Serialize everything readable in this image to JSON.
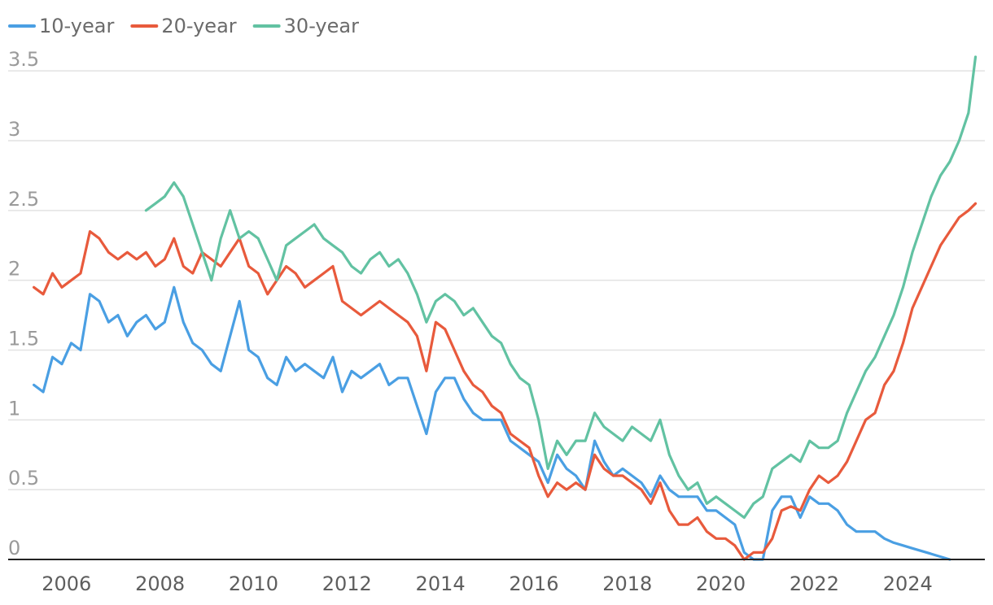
{
  "chart_data": {
    "type": "line",
    "title": "",
    "xlabel": "",
    "ylabel": "",
    "ylim": [
      0,
      3.6
    ],
    "xlim": [
      2004.75,
      2025.65
    ],
    "grid": true,
    "legend": "top-left",
    "y_ticks": [
      {
        "value": 0,
        "label": "0"
      },
      {
        "value": 0.5,
        "label": "0.5"
      },
      {
        "value": 1,
        "label": "1"
      },
      {
        "value": 1.5,
        "label": "1.5"
      },
      {
        "value": 2,
        "label": "2"
      },
      {
        "value": 2.5,
        "label": "2.5"
      },
      {
        "value": 3,
        "label": "3"
      },
      {
        "value": 3.5,
        "label": "3.5"
      }
    ],
    "x_ticks": [
      {
        "value": 2006,
        "label": "2006"
      },
      {
        "value": 2008,
        "label": "2008"
      },
      {
        "value": 2010,
        "label": "2010"
      },
      {
        "value": 2012,
        "label": "2012"
      },
      {
        "value": 2014,
        "label": "2014"
      },
      {
        "value": 2016,
        "label": "2016"
      },
      {
        "value": 2018,
        "label": "2018"
      },
      {
        "value": 2020,
        "label": "2020"
      },
      {
        "value": 2022,
        "label": "2022"
      },
      {
        "value": 2024,
        "label": "2024"
      }
    ],
    "series": [
      {
        "name": "10-year",
        "color": "#4a9fe3",
        "points": [
          [
            2005.3,
            1.25
          ],
          [
            2005.5,
            1.2
          ],
          [
            2005.7,
            1.45
          ],
          [
            2005.9,
            1.4
          ],
          [
            2006.1,
            1.55
          ],
          [
            2006.3,
            1.5
          ],
          [
            2006.5,
            1.9
          ],
          [
            2006.7,
            1.85
          ],
          [
            2006.9,
            1.7
          ],
          [
            2007.1,
            1.75
          ],
          [
            2007.3,
            1.6
          ],
          [
            2007.5,
            1.7
          ],
          [
            2007.7,
            1.75
          ],
          [
            2007.9,
            1.65
          ],
          [
            2008.1,
            1.7
          ],
          [
            2008.3,
            1.95
          ],
          [
            2008.5,
            1.7
          ],
          [
            2008.7,
            1.55
          ],
          [
            2008.9,
            1.5
          ],
          [
            2009.1,
            1.4
          ],
          [
            2009.3,
            1.35
          ],
          [
            2009.5,
            1.6
          ],
          [
            2009.7,
            1.85
          ],
          [
            2009.9,
            1.5
          ],
          [
            2010.1,
            1.45
          ],
          [
            2010.3,
            1.3
          ],
          [
            2010.5,
            1.25
          ],
          [
            2010.7,
            1.45
          ],
          [
            2010.9,
            1.35
          ],
          [
            2011.1,
            1.4
          ],
          [
            2011.3,
            1.35
          ],
          [
            2011.5,
            1.3
          ],
          [
            2011.7,
            1.45
          ],
          [
            2011.9,
            1.2
          ],
          [
            2012.1,
            1.35
          ],
          [
            2012.3,
            1.3
          ],
          [
            2012.5,
            1.35
          ],
          [
            2012.7,
            1.4
          ],
          [
            2012.9,
            1.25
          ],
          [
            2013.1,
            1.3
          ],
          [
            2013.3,
            1.3
          ],
          [
            2013.5,
            1.1
          ],
          [
            2013.7,
            0.9
          ],
          [
            2013.9,
            1.2
          ],
          [
            2014.1,
            1.3
          ],
          [
            2014.3,
            1.3
          ],
          [
            2014.5,
            1.15
          ],
          [
            2014.7,
            1.05
          ],
          [
            2014.9,
            1.0
          ],
          [
            2015.1,
            1.0
          ],
          [
            2015.3,
            1.0
          ],
          [
            2015.5,
            0.85
          ],
          [
            2015.7,
            0.8
          ],
          [
            2015.9,
            0.75
          ],
          [
            2016.1,
            0.7
          ],
          [
            2016.3,
            0.55
          ],
          [
            2016.5,
            0.75
          ],
          [
            2016.7,
            0.65
          ],
          [
            2016.9,
            0.6
          ],
          [
            2017.1,
            0.5
          ],
          [
            2017.3,
            0.85
          ],
          [
            2017.5,
            0.7
          ],
          [
            2017.7,
            0.6
          ],
          [
            2017.9,
            0.65
          ],
          [
            2018.1,
            0.6
          ],
          [
            2018.3,
            0.55
          ],
          [
            2018.5,
            0.45
          ],
          [
            2018.7,
            0.6
          ],
          [
            2018.9,
            0.5
          ],
          [
            2019.1,
            0.45
          ],
          [
            2019.3,
            0.45
          ],
          [
            2019.5,
            0.45
          ],
          [
            2019.7,
            0.35
          ],
          [
            2019.9,
            0.35
          ],
          [
            2020.1,
            0.3
          ],
          [
            2020.3,
            0.25
          ],
          [
            2020.5,
            0.05
          ],
          [
            2020.7,
            0.0
          ],
          [
            2020.9,
            0.0
          ],
          [
            2021.1,
            0.35
          ],
          [
            2021.3,
            0.45
          ],
          [
            2021.5,
            0.45
          ],
          [
            2021.7,
            0.3
          ],
          [
            2021.9,
            0.45
          ],
          [
            2022.1,
            0.4
          ],
          [
            2022.3,
            0.4
          ],
          [
            2022.5,
            0.35
          ],
          [
            2022.7,
            0.25
          ],
          [
            2022.9,
            0.2
          ],
          [
            2023.1,
            0.2
          ],
          [
            2023.3,
            0.2
          ],
          [
            2023.5,
            0.15
          ],
          [
            2023.7,
            0.12
          ],
          [
            2023.9,
            0.1
          ],
          [
            2024.1,
            0.08
          ],
          [
            2024.3,
            0.06
          ],
          [
            2024.5,
            0.04
          ],
          [
            2024.7,
            0.02
          ],
          [
            2024.9,
            0.0
          ]
        ]
      },
      {
        "name": "20-year",
        "color": "#e85a3c",
        "points": [
          [
            2005.3,
            1.95
          ],
          [
            2005.5,
            1.9
          ],
          [
            2005.7,
            2.05
          ],
          [
            2005.9,
            1.95
          ],
          [
            2006.1,
            2.0
          ],
          [
            2006.3,
            2.05
          ],
          [
            2006.5,
            2.35
          ],
          [
            2006.7,
            2.3
          ],
          [
            2006.9,
            2.2
          ],
          [
            2007.1,
            2.15
          ],
          [
            2007.3,
            2.2
          ],
          [
            2007.5,
            2.15
          ],
          [
            2007.7,
            2.2
          ],
          [
            2007.9,
            2.1
          ],
          [
            2008.1,
            2.15
          ],
          [
            2008.3,
            2.3
          ],
          [
            2008.5,
            2.1
          ],
          [
            2008.7,
            2.05
          ],
          [
            2008.9,
            2.2
          ],
          [
            2009.1,
            2.15
          ],
          [
            2009.3,
            2.1
          ],
          [
            2009.5,
            2.2
          ],
          [
            2009.7,
            2.3
          ],
          [
            2009.9,
            2.1
          ],
          [
            2010.1,
            2.05
          ],
          [
            2010.3,
            1.9
          ],
          [
            2010.5,
            2.0
          ],
          [
            2010.7,
            2.1
          ],
          [
            2010.9,
            2.05
          ],
          [
            2011.1,
            1.95
          ],
          [
            2011.3,
            2.0
          ],
          [
            2011.5,
            2.05
          ],
          [
            2011.7,
            2.1
          ],
          [
            2011.9,
            1.85
          ],
          [
            2012.1,
            1.8
          ],
          [
            2012.3,
            1.75
          ],
          [
            2012.5,
            1.8
          ],
          [
            2012.7,
            1.85
          ],
          [
            2012.9,
            1.8
          ],
          [
            2013.1,
            1.75
          ],
          [
            2013.3,
            1.7
          ],
          [
            2013.5,
            1.6
          ],
          [
            2013.7,
            1.35
          ],
          [
            2013.9,
            1.7
          ],
          [
            2014.1,
            1.65
          ],
          [
            2014.3,
            1.5
          ],
          [
            2014.5,
            1.35
          ],
          [
            2014.7,
            1.25
          ],
          [
            2014.9,
            1.2
          ],
          [
            2015.1,
            1.1
          ],
          [
            2015.3,
            1.05
          ],
          [
            2015.5,
            0.9
          ],
          [
            2015.7,
            0.85
          ],
          [
            2015.9,
            0.8
          ],
          [
            2016.1,
            0.6
          ],
          [
            2016.3,
            0.45
          ],
          [
            2016.5,
            0.55
          ],
          [
            2016.7,
            0.5
          ],
          [
            2016.9,
            0.55
          ],
          [
            2017.1,
            0.5
          ],
          [
            2017.3,
            0.75
          ],
          [
            2017.5,
            0.65
          ],
          [
            2017.7,
            0.6
          ],
          [
            2017.9,
            0.6
          ],
          [
            2018.1,
            0.55
          ],
          [
            2018.3,
            0.5
          ],
          [
            2018.5,
            0.4
          ],
          [
            2018.7,
            0.55
          ],
          [
            2018.9,
            0.35
          ],
          [
            2019.1,
            0.25
          ],
          [
            2019.3,
            0.25
          ],
          [
            2019.5,
            0.3
          ],
          [
            2019.7,
            0.2
          ],
          [
            2019.9,
            0.15
          ],
          [
            2020.1,
            0.15
          ],
          [
            2020.3,
            0.1
          ],
          [
            2020.5,
            0.0
          ],
          [
            2020.7,
            0.05
          ],
          [
            2020.9,
            0.05
          ],
          [
            2021.1,
            0.15
          ],
          [
            2021.3,
            0.35
          ],
          [
            2021.5,
            0.38
          ],
          [
            2021.7,
            0.35
          ],
          [
            2021.9,
            0.5
          ],
          [
            2022.1,
            0.6
          ],
          [
            2022.3,
            0.55
          ],
          [
            2022.5,
            0.6
          ],
          [
            2022.7,
            0.7
          ],
          [
            2022.9,
            0.85
          ],
          [
            2023.1,
            1.0
          ],
          [
            2023.3,
            1.05
          ],
          [
            2023.5,
            1.25
          ],
          [
            2023.7,
            1.35
          ],
          [
            2023.9,
            1.55
          ],
          [
            2024.1,
            1.8
          ],
          [
            2024.3,
            1.95
          ],
          [
            2024.5,
            2.1
          ],
          [
            2024.7,
            2.25
          ],
          [
            2024.9,
            2.35
          ],
          [
            2025.1,
            2.45
          ],
          [
            2025.3,
            2.5
          ],
          [
            2025.45,
            2.55
          ]
        ]
      },
      {
        "name": "30-year",
        "color": "#62c2a2",
        "points": [
          [
            2007.7,
            2.5
          ],
          [
            2007.9,
            2.55
          ],
          [
            2008.1,
            2.6
          ],
          [
            2008.3,
            2.7
          ],
          [
            2008.5,
            2.6
          ],
          [
            2008.7,
            2.4
          ],
          [
            2008.9,
            2.2
          ],
          [
            2009.1,
            2.0
          ],
          [
            2009.3,
            2.3
          ],
          [
            2009.5,
            2.5
          ],
          [
            2009.7,
            2.3
          ],
          [
            2009.9,
            2.35
          ],
          [
            2010.1,
            2.3
          ],
          [
            2010.3,
            2.15
          ],
          [
            2010.5,
            2.0
          ],
          [
            2010.7,
            2.25
          ],
          [
            2010.9,
            2.3
          ],
          [
            2011.1,
            2.35
          ],
          [
            2011.3,
            2.4
          ],
          [
            2011.5,
            2.3
          ],
          [
            2011.7,
            2.25
          ],
          [
            2011.9,
            2.2
          ],
          [
            2012.1,
            2.1
          ],
          [
            2012.3,
            2.05
          ],
          [
            2012.5,
            2.15
          ],
          [
            2012.7,
            2.2
          ],
          [
            2012.9,
            2.1
          ],
          [
            2013.1,
            2.15
          ],
          [
            2013.3,
            2.05
          ],
          [
            2013.5,
            1.9
          ],
          [
            2013.7,
            1.7
          ],
          [
            2013.9,
            1.85
          ],
          [
            2014.1,
            1.9
          ],
          [
            2014.3,
            1.85
          ],
          [
            2014.5,
            1.75
          ],
          [
            2014.7,
            1.8
          ],
          [
            2014.9,
            1.7
          ],
          [
            2015.1,
            1.6
          ],
          [
            2015.3,
            1.55
          ],
          [
            2015.5,
            1.4
          ],
          [
            2015.7,
            1.3
          ],
          [
            2015.9,
            1.25
          ],
          [
            2016.1,
            1.0
          ],
          [
            2016.3,
            0.65
          ],
          [
            2016.5,
            0.85
          ],
          [
            2016.7,
            0.75
          ],
          [
            2016.9,
            0.85
          ],
          [
            2017.1,
            0.85
          ],
          [
            2017.3,
            1.05
          ],
          [
            2017.5,
            0.95
          ],
          [
            2017.7,
            0.9
          ],
          [
            2017.9,
            0.85
          ],
          [
            2018.1,
            0.95
          ],
          [
            2018.3,
            0.9
          ],
          [
            2018.5,
            0.85
          ],
          [
            2018.7,
            1.0
          ],
          [
            2018.9,
            0.75
          ],
          [
            2019.1,
            0.6
          ],
          [
            2019.3,
            0.5
          ],
          [
            2019.5,
            0.55
          ],
          [
            2019.7,
            0.4
          ],
          [
            2019.9,
            0.45
          ],
          [
            2020.1,
            0.4
          ],
          [
            2020.3,
            0.35
          ],
          [
            2020.5,
            0.3
          ],
          [
            2020.7,
            0.4
          ],
          [
            2020.9,
            0.45
          ],
          [
            2021.1,
            0.65
          ],
          [
            2021.3,
            0.7
          ],
          [
            2021.5,
            0.75
          ],
          [
            2021.7,
            0.7
          ],
          [
            2021.9,
            0.85
          ],
          [
            2022.1,
            0.8
          ],
          [
            2022.3,
            0.8
          ],
          [
            2022.5,
            0.85
          ],
          [
            2022.7,
            1.05
          ],
          [
            2022.9,
            1.2
          ],
          [
            2023.1,
            1.35
          ],
          [
            2023.3,
            1.45
          ],
          [
            2023.5,
            1.6
          ],
          [
            2023.7,
            1.75
          ],
          [
            2023.9,
            1.95
          ],
          [
            2024.1,
            2.2
          ],
          [
            2024.3,
            2.4
          ],
          [
            2024.5,
            2.6
          ],
          [
            2024.7,
            2.75
          ],
          [
            2024.9,
            2.85
          ],
          [
            2025.1,
            3.0
          ],
          [
            2025.3,
            3.2
          ],
          [
            2025.45,
            3.6
          ]
        ]
      }
    ]
  }
}
